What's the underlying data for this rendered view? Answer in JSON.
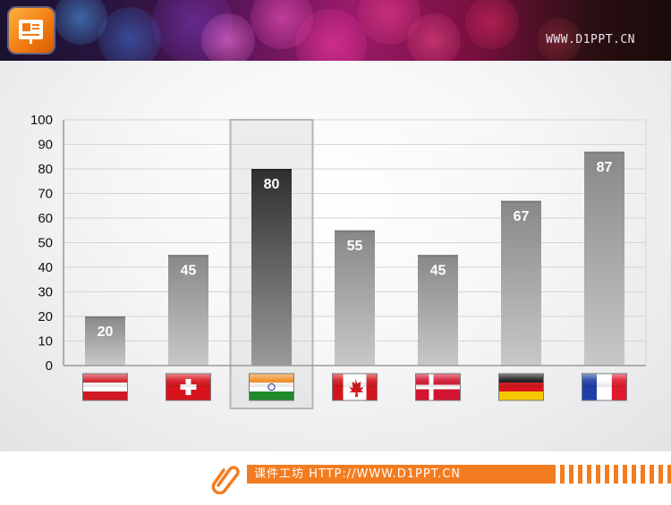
{
  "header": {
    "site_url": "WWW.D1PPT.CN"
  },
  "footer": {
    "text": "课件工坊 HTTP://WWW.D1PPT.CN"
  },
  "colors": {
    "accent": "#f47c20",
    "bar_dark": "#3a3a3a",
    "bar_light": "#c2c2c2"
  },
  "chart_data": {
    "type": "bar",
    "categories": [
      "Austria",
      "Switzerland",
      "India",
      "Canada",
      "Denmark",
      "Germany",
      "France"
    ],
    "category_icons": [
      "austria-flag-icon",
      "switzerland-flag-icon",
      "india-flag-icon",
      "canada-flag-icon",
      "denmark-flag-icon",
      "germany-flag-icon",
      "france-flag-icon"
    ],
    "values": [
      20,
      45,
      80,
      55,
      45,
      67,
      87
    ],
    "highlighted_category": "India",
    "ylim": [
      0,
      100
    ],
    "yticks": [
      0,
      10,
      20,
      30,
      40,
      50,
      60,
      70,
      80,
      90,
      100
    ],
    "grid": true,
    "legend": "none",
    "data_labels": true
  }
}
